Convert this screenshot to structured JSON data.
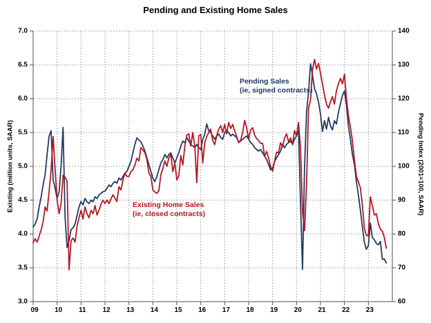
{
  "chart_data": {
    "type": "line",
    "title": "Pending and Existing Home Sales",
    "frequency": "monthly",
    "start": {
      "year": 2009,
      "month": 1
    },
    "end": {
      "year": 2023,
      "month": 10
    },
    "grid": true,
    "background": "#FFFFFF",
    "grid_color": "#ABABAB",
    "axis_color": "#4D4D4D",
    "text_color": "#000000",
    "x_axis": {
      "tick_labels": [
        "09",
        "10",
        "11",
        "12",
        "13",
        "14",
        "15",
        "16",
        "17",
        "18",
        "19",
        "20",
        "21",
        "22",
        "23"
      ],
      "range_years": [
        2009,
        2024
      ]
    },
    "left_axis": {
      "label": "Existing (million units, SAAR)",
      "tick_labels": [
        "7.0",
        "6.5",
        "6.0",
        "5.5",
        "5.0",
        "4.5",
        "4.0",
        "3.5",
        "3.0"
      ],
      "range": [
        3.0,
        7.0
      ]
    },
    "right_axis": {
      "label": "Pending Index (2001=100, SAAR)",
      "tick_labels": [
        "140",
        "130",
        "120",
        "110",
        "100",
        "90",
        "80",
        "70",
        "60"
      ],
      "range": [
        60,
        140
      ]
    },
    "series": [
      {
        "name": "Pending Sales (ie, signed contracts)",
        "axis": "right",
        "color": "#1F3864",
        "values": [
          82,
          83,
          84.5,
          88,
          91,
          94.5,
          97.5,
          103.5,
          109,
          110.5,
          96,
          93.5,
          90.5,
          92.5,
          100,
          111.5,
          85,
          76,
          78,
          81.3,
          81.8,
          83,
          85.5,
          88,
          89.6,
          88.6,
          90.5,
          89.5,
          89,
          90,
          89.5,
          91,
          90.5,
          91.5,
          92,
          92.5,
          92.7,
          93.5,
          94.5,
          94,
          95,
          95.5,
          95,
          96.5,
          96,
          97,
          98,
          98.5,
          100,
          101.5,
          104,
          106.5,
          108.4,
          107.8,
          107.2,
          106,
          104.5,
          102.5,
          100.5,
          98.5,
          96.5,
          95.5,
          97,
          99,
          101,
          102,
          103.5,
          102.5,
          103.5,
          104,
          102.5,
          101,
          102.5,
          104,
          106,
          107.5,
          107,
          108.5,
          107.5,
          106.5,
          106,
          105.5,
          106.5,
          105.5,
          105,
          108,
          109.5,
          112.5,
          110.5,
          110,
          109,
          108,
          109,
          109.5,
          108.5,
          108,
          110,
          110.5,
          110,
          109,
          109.5,
          109,
          108.5,
          107,
          107.5,
          108,
          108.5,
          109,
          108,
          107,
          106.5,
          105.5,
          105,
          104.5,
          105,
          104,
          103,
          102,
          100.5,
          99,
          99.5,
          101.5,
          102.5,
          103.5,
          104.5,
          106.5,
          105.5,
          106.5,
          107,
          107.5,
          106.5,
          108,
          109,
          110.5,
          89,
          69.5,
          99.5,
          116,
          122,
          130.3,
          127,
          123,
          121.5,
          119,
          115.5,
          110.3,
          113.5,
          111,
          114.5,
          112,
          110.8,
          113.5,
          112.5,
          116,
          118.5,
          121,
          122.3,
          118,
          112,
          108,
          103.5,
          100.5,
          95.5,
          91.5,
          87,
          82,
          77.5,
          75.5,
          76.5,
          83.2,
          78.9,
          78.3,
          77.2,
          76.8,
          77.8,
          72.5,
          72.6,
          71.4
        ]
      },
      {
        "name": "Existing Home Sales (ie, closed contracts)",
        "axis": "left",
        "color": "#B4161F",
        "values": [
          3.87,
          3.93,
          3.88,
          3.97,
          4.06,
          4.18,
          4.4,
          4.34,
          4.63,
          4.95,
          5.44,
          4.95,
          4.5,
          4.3,
          4.45,
          4.87,
          4.84,
          4.78,
          3.47,
          3.9,
          3.94,
          3.88,
          4.12,
          4.24,
          4.35,
          4.22,
          4.4,
          4.3,
          4.24,
          4.35,
          4.3,
          4.42,
          4.28,
          4.35,
          4.44,
          4.5,
          4.45,
          4.5,
          4.45,
          4.52,
          4.58,
          4.53,
          4.48,
          4.7,
          4.65,
          4.8,
          4.9,
          4.85,
          4.85,
          4.92,
          4.95,
          5.02,
          5.12,
          5.08,
          5.28,
          5.24,
          5.2,
          5.1,
          4.9,
          4.85,
          4.65,
          4.62,
          4.6,
          4.64,
          4.88,
          4.97,
          5.08,
          5.0,
          5.12,
          5.18,
          4.92,
          5.05,
          4.8,
          4.86,
          5.16,
          5.02,
          5.3,
          5.46,
          5.48,
          5.3,
          5.5,
          5.3,
          4.76,
          5.45,
          5.47,
          5.05,
          5.35,
          5.44,
          5.5,
          5.55,
          5.38,
          5.32,
          5.45,
          5.55,
          5.6,
          5.5,
          5.62,
          5.48,
          5.65,
          5.56,
          5.62,
          5.52,
          5.44,
          5.35,
          5.39,
          5.5,
          5.68,
          5.57,
          5.4,
          5.54,
          5.57,
          5.46,
          5.41,
          5.38,
          5.34,
          5.34,
          5.15,
          5.22,
          5.12,
          4.99,
          4.93,
          5.08,
          5.21,
          5.2,
          5.35,
          5.29,
          5.42,
          5.48,
          5.36,
          5.42,
          5.32,
          5.53,
          5.45,
          5.65,
          5.27,
          4.33,
          4.05,
          4.72,
          5.86,
          5.98,
          6.42,
          6.58,
          6.44,
          6.52,
          6.38,
          6.22,
          6.05,
          5.92,
          5.86,
          5.95,
          6.03,
          5.92,
          6.12,
          6.22,
          6.3,
          6.22,
          6.36,
          6.0,
          5.75,
          5.58,
          5.38,
          5.1,
          4.85,
          4.77,
          4.68,
          4.42,
          4.08,
          3.98,
          3.97,
          4.55,
          4.42,
          4.28,
          4.3,
          4.15,
          4.07,
          4.04,
          3.95,
          3.79
        ]
      }
    ],
    "annotations": [
      {
        "lines": [
          "Pending Sales",
          "(ie, signed contracts)"
        ],
        "color": "#1F3864"
      },
      {
        "lines": [
          "Existing Home Sales",
          "(ie, closed contracts)"
        ],
        "color": "#B4161F"
      }
    ],
    "legend_position": "none"
  }
}
